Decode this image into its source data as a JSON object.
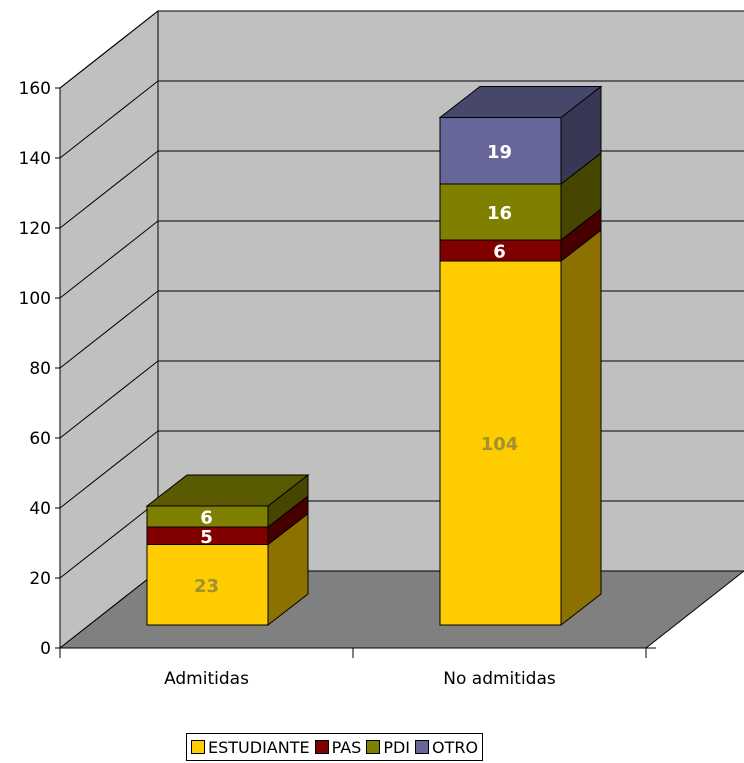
{
  "chart_data": {
    "type": "bar",
    "stacked": true,
    "three_d": true,
    "categories": [
      "Admitidas",
      "No admitidas"
    ],
    "series": [
      {
        "name": "ESTUDIANTE",
        "values": [
          23,
          104
        ],
        "color": "#FFCC00",
        "label_color": "#A09030"
      },
      {
        "name": "PAS",
        "values": [
          5,
          6
        ],
        "color": "#800000",
        "label_color": "#FFFFFF"
      },
      {
        "name": "PDI",
        "values": [
          6,
          16
        ],
        "color": "#808000",
        "label_color": "#FFFFFF"
      },
      {
        "name": "OTRO",
        "values": [
          0,
          19
        ],
        "color": "#666699",
        "label_color": "#FFFFFF"
      }
    ],
    "y_ticks": [
      "0",
      "20",
      "40",
      "60",
      "80",
      "100",
      "120",
      "140",
      "160"
    ],
    "ylim": [
      0,
      160
    ],
    "grid": true,
    "legend": "bottom",
    "wall_color": "#C0C0C0",
    "floor_color": "#808080"
  }
}
